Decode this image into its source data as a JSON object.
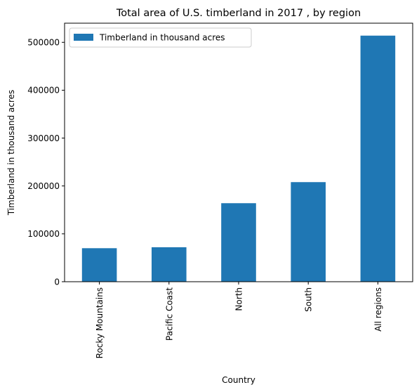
{
  "chart_data": {
    "type": "bar",
    "title": "Total area of U.S. timberland in 2017 , by region",
    "xlabel": "Country",
    "ylabel": "Timberland in thousand acres",
    "categories": [
      "Rocky Mountains",
      "Pacific Coast",
      "North",
      "South",
      "All regions"
    ],
    "series": [
      {
        "name": "Timberland in thousand acres",
        "values": [
          70000,
          72000,
          164000,
          208000,
          514000
        ],
        "color": "#1f77b4"
      }
    ],
    "ylim": [
      0,
      540000
    ],
    "yticks": [
      0,
      100000,
      200000,
      300000,
      400000,
      500000
    ],
    "ytick_labels": [
      "0",
      "100000",
      "200000",
      "300000",
      "400000",
      "500000"
    ],
    "legend_position": "top-left",
    "grid": false
  }
}
